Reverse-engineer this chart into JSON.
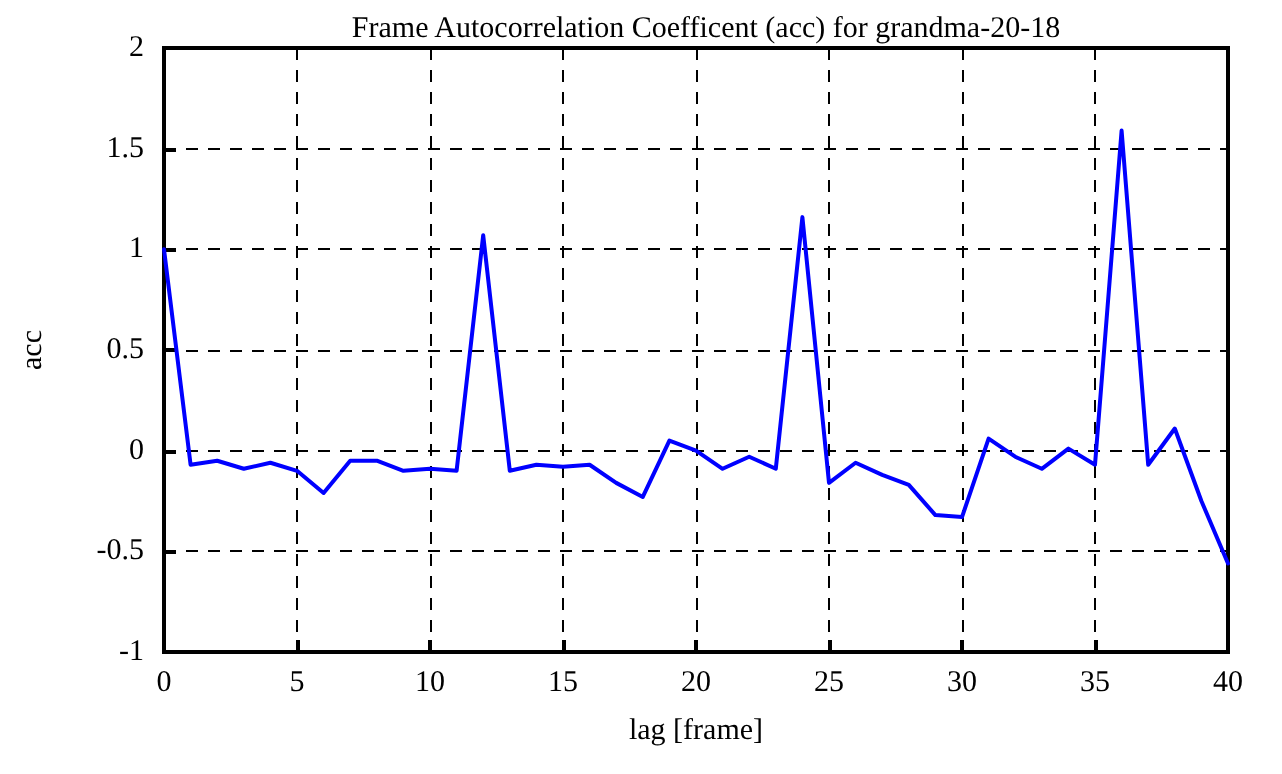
{
  "chart_data": {
    "type": "line",
    "title": "Frame Autocorrelation Coefficent (acc) for grandma-20-18",
    "xlabel": "lag [frame]",
    "ylabel": "acc",
    "x": [
      0,
      1,
      2,
      3,
      4,
      5,
      6,
      7,
      8,
      9,
      10,
      11,
      12,
      13,
      14,
      15,
      16,
      17,
      18,
      19,
      20,
      21,
      22,
      23,
      24,
      25,
      26,
      27,
      28,
      29,
      30,
      31,
      32,
      33,
      34,
      35,
      36,
      37,
      38,
      39,
      40
    ],
    "series": [
      {
        "color": "#0000ff",
        "values": [
          1.0,
          -0.07,
          -0.05,
          -0.09,
          -0.06,
          -0.1,
          -0.21,
          -0.05,
          -0.05,
          -0.1,
          -0.09,
          -0.1,
          1.07,
          -0.1,
          -0.07,
          -0.08,
          -0.07,
          -0.16,
          -0.23,
          0.05,
          0.0,
          -0.09,
          -0.03,
          -0.09,
          1.16,
          -0.16,
          -0.06,
          -0.12,
          -0.17,
          -0.32,
          -0.33,
          0.06,
          -0.03,
          -0.09,
          0.01,
          -0.07,
          1.59,
          -0.07,
          0.11,
          -0.25,
          -0.56
        ]
      }
    ],
    "xlim": [
      0,
      40
    ],
    "xticks": [
      0,
      5,
      10,
      15,
      20,
      25,
      30,
      35,
      40
    ],
    "ylim": [
      -1,
      2
    ],
    "yticks": [
      -1,
      -0.5,
      0,
      0.5,
      1,
      1.5,
      2
    ],
    "grid": true,
    "marker": "none",
    "line_style": "solid"
  }
}
